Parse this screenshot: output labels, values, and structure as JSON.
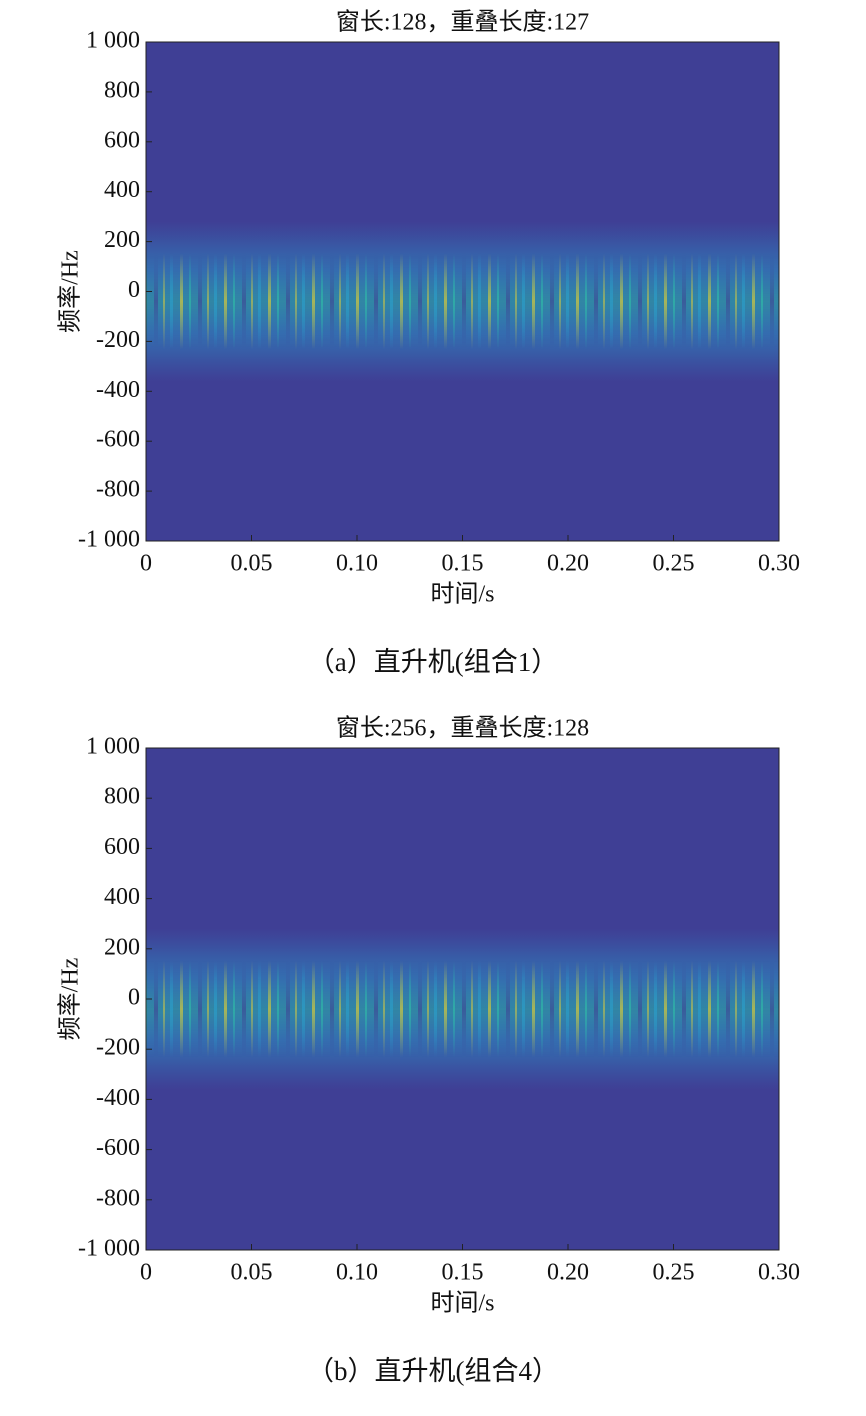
{
  "chart_data": [
    {
      "type": "heatmap",
      "title": "窗长:128，重叠长度:127",
      "xlabel": "时间/s",
      "ylabel": "频率/Hz",
      "caption": "（a）直升机(组合1）",
      "xlim": [
        0,
        0.3
      ],
      "ylim": [
        -1000,
        1000
      ],
      "xticks": [
        0,
        0.05,
        {
          "value": 0.1,
          "label": "0.10"
        },
        0.15,
        {
          "value": 0.2,
          "label": "0.20"
        },
        0.25,
        {
          "value": 0.3,
          "label": "0.30"
        }
      ],
      "yticks": [
        {
          "value": -1000,
          "label": "-1 000"
        },
        -800,
        -600,
        -400,
        -200,
        0,
        200,
        400,
        600,
        800,
        {
          "value": 1000,
          "label": "1 000"
        }
      ],
      "color": "#3f3f95"
    },
    {
      "type": "heatmap",
      "title": "窗长:256，重叠长度:128",
      "xlabel": "时间/s",
      "ylabel": "频率/Hz",
      "caption": "（b）直升机(组合4）",
      "xlim": [
        0,
        0.3
      ],
      "ylim": [
        -1000,
        1000
      ],
      "xticks": [
        0,
        0.05,
        {
          "value": 0.1,
          "label": "0.10"
        },
        0.15,
        {
          "value": 0.2,
          "label": "0.20"
        },
        0.25,
        {
          "value": 0.3,
          "label": "0.30"
        }
      ],
      "yticks": [
        {
          "value": -1000,
          "label": "-1 000"
        },
        -800,
        -600,
        -400,
        -200,
        0,
        200,
        400,
        600,
        800,
        {
          "value": 1000,
          "label": "1 000"
        }
      ],
      "color": "#3f3f95"
    }
  ]
}
